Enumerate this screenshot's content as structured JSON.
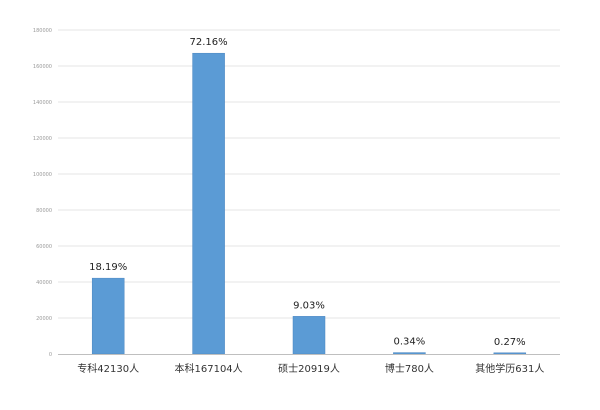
{
  "chart_data": {
    "type": "bar",
    "categories": [
      "专科42130人",
      "本科167104人",
      "硕士20919人",
      "博士780人",
      "其他学历631人"
    ],
    "values": [
      42130,
      167104,
      20919,
      780,
      631
    ],
    "data_labels": [
      "18.19%",
      "72.16%",
      "9.03%",
      "0.34%",
      "0.27%"
    ],
    "ylim": [
      0,
      180000
    ],
    "yticks": [
      0,
      20000,
      40000,
      60000,
      80000,
      100000,
      120000,
      140000,
      160000,
      180000
    ],
    "ytick_labels": [
      "0",
      "20000",
      "40000",
      "60000",
      "80000",
      "100000",
      "120000",
      "140000",
      "160000",
      "180000"
    ],
    "grid": true,
    "colors": {
      "bar": "#5b9bd5",
      "bar_outline": "#4a86c0"
    }
  }
}
